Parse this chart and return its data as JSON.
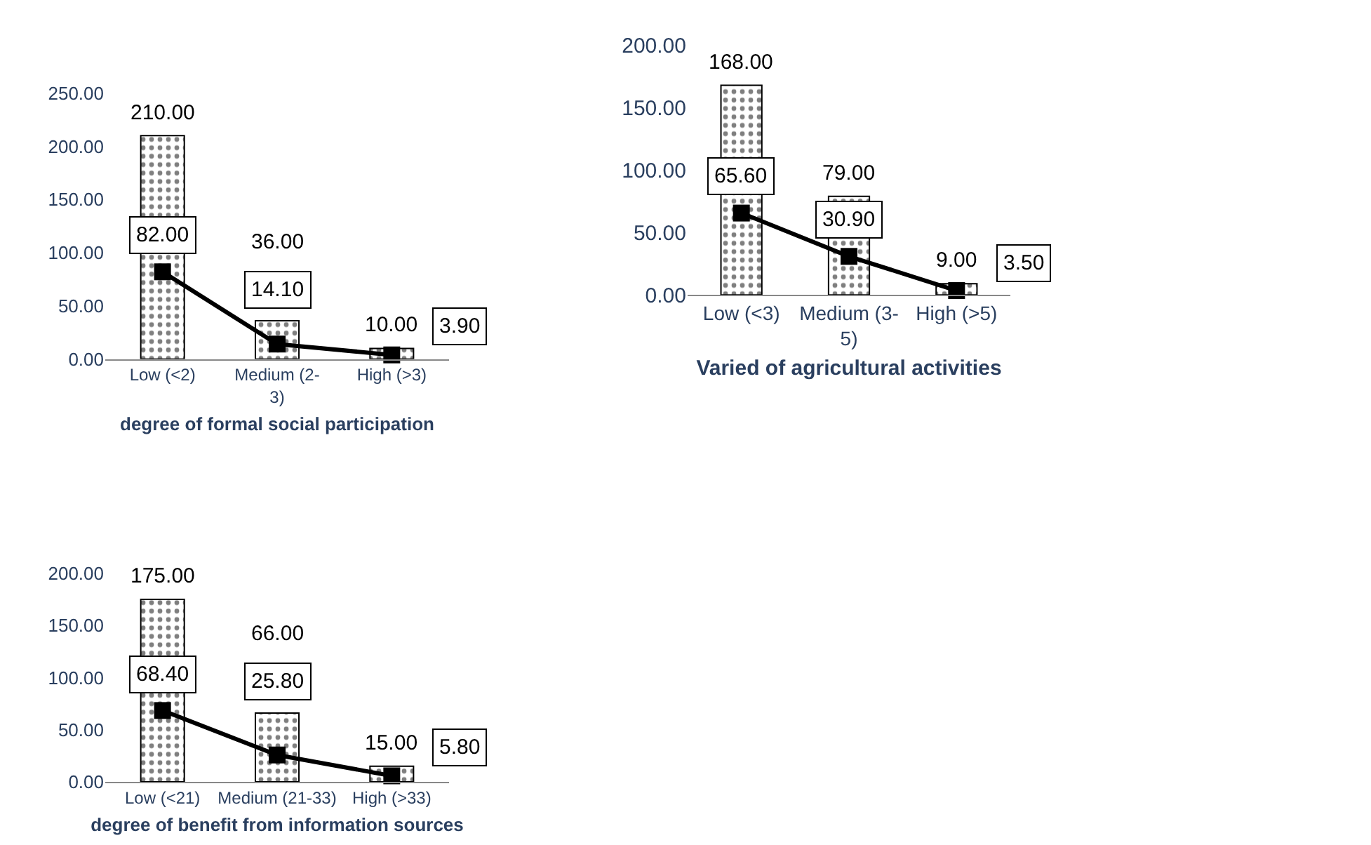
{
  "chart_data": [
    {
      "type": "bar",
      "xlabel": "degree of formal social participation",
      "categories": [
        "Low (<2)",
        "Medium (2-3)",
        "High (>3)"
      ],
      "ylim": [
        0,
        250
      ],
      "yticks": [
        {
          "value": 0,
          "label": "0.00"
        },
        {
          "value": 50,
          "label": "50.00"
        },
        {
          "value": 100,
          "label": "100.00"
        },
        {
          "value": 150,
          "label": "150.00"
        },
        {
          "value": 200,
          "label": "200.00"
        },
        {
          "value": 250,
          "label": "250.00"
        }
      ],
      "series": [
        {
          "type": "bar",
          "color": "#000000",
          "values": [
            210,
            36,
            10
          ],
          "value_labels": [
            "210.00",
            "36.00",
            "10.00"
          ]
        },
        {
          "type": "line",
          "color": "#000000",
          "marker": "square",
          "values": [
            82,
            14.1,
            3.9
          ],
          "value_labels": [
            "82.00",
            "14.10",
            "3.90"
          ]
        }
      ]
    },
    {
      "type": "bar",
      "xlabel": "Varied of agricultural activities",
      "categories": [
        "Low (<3)",
        "Medium (3-5)",
        "High (>5)"
      ],
      "ylim": [
        0,
        200
      ],
      "yticks": [
        {
          "value": 0,
          "label": "0.00"
        },
        {
          "value": 50,
          "label": "50.00"
        },
        {
          "value": 100,
          "label": "100.00"
        },
        {
          "value": 150,
          "label": "150.00"
        },
        {
          "value": 200,
          "label": "200.00"
        }
      ],
      "series": [
        {
          "type": "bar",
          "color": "#000000",
          "values": [
            168,
            79,
            9
          ],
          "value_labels": [
            "168.00",
            "79.00",
            "9.00"
          ]
        },
        {
          "type": "line",
          "color": "#000000",
          "marker": "square",
          "values": [
            65.6,
            30.9,
            3.5
          ],
          "value_labels": [
            "65.60",
            "30.90",
            "3.50"
          ]
        }
      ]
    },
    {
      "type": "bar",
      "xlabel": "degree of benefit from information sources",
      "categories": [
        "Low (<21)",
        "Medium (21-33)",
        "High (>33)"
      ],
      "ylim": [
        0,
        200
      ],
      "yticks": [
        {
          "value": 0,
          "label": "0.00"
        },
        {
          "value": 50,
          "label": "50.00"
        },
        {
          "value": 100,
          "label": "100.00"
        },
        {
          "value": 150,
          "label": "150.00"
        },
        {
          "value": 200,
          "label": "200.00"
        }
      ],
      "series": [
        {
          "type": "bar",
          "color": "#000000",
          "values": [
            175,
            66,
            15
          ],
          "value_labels": [
            "175.00",
            "66.00",
            "15.00"
          ]
        },
        {
          "type": "line",
          "color": "#000000",
          "marker": "square",
          "values": [
            68.4,
            25.8,
            5.8
          ],
          "value_labels": [
            "68.40",
            "25.80",
            "5.80"
          ]
        }
      ]
    }
  ]
}
